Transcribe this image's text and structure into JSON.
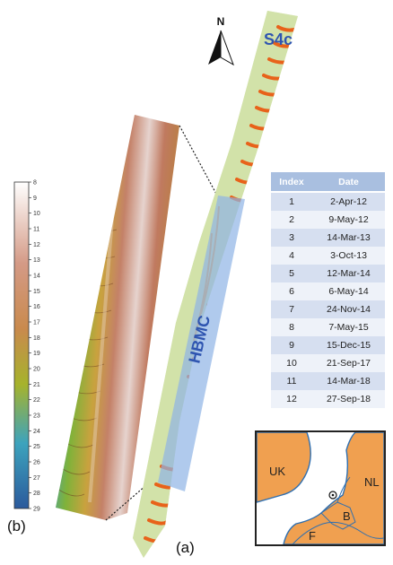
{
  "north_label": "N",
  "area_label": "S4c",
  "zone_label": "HBMC",
  "panel_a_label": "(a)",
  "panel_b_label": "(b)",
  "colorbar": {
    "ticks": [
      "8",
      "9",
      "10",
      "11",
      "12",
      "13",
      "14",
      "15",
      "16",
      "17",
      "18",
      "19",
      "20",
      "21",
      "22",
      "23",
      "24",
      "25",
      "26",
      "27",
      "28",
      "29"
    ],
    "colors": [
      "#ffffff",
      "#d79b86",
      "#c9894f",
      "#9bb12f",
      "#3f9ec0",
      "#2a5aa0"
    ]
  },
  "survey_table": {
    "headers": [
      "Index",
      "Date"
    ],
    "rows": [
      [
        "1",
        "2-Apr-12"
      ],
      [
        "2",
        "9-May-12"
      ],
      [
        "3",
        "14-Mar-13"
      ],
      [
        "4",
        "3-Oct-13"
      ],
      [
        "5",
        "12-Mar-14"
      ],
      [
        "6",
        "6-May-14"
      ],
      [
        "7",
        "24-Nov-14"
      ],
      [
        "8",
        "7-May-15"
      ],
      [
        "9",
        "15-Dec-15"
      ],
      [
        "10",
        "21-Sep-17"
      ],
      [
        "11",
        "14-Mar-18"
      ],
      [
        "12",
        "27-Sep-18"
      ]
    ]
  },
  "inset_map": {
    "labels": {
      "uk": "UK",
      "nl": "NL",
      "b": "B",
      "f": "F"
    },
    "land_color": "#f0a050",
    "water_color": "#ffffff"
  }
}
